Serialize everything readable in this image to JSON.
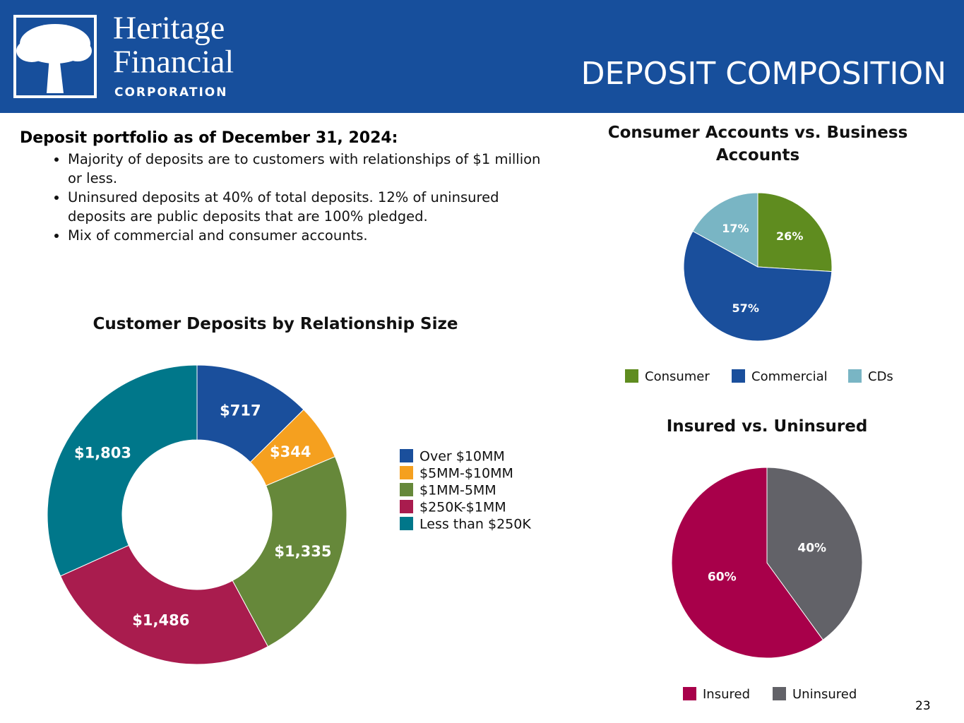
{
  "header": {
    "logo_line1": "Heritage",
    "logo_line2": "Financial",
    "logo_line3": "CORPORATION",
    "title": "DEPOSIT COMPOSITION"
  },
  "summary": {
    "heading": "Deposit portfolio as of December 31, 2024:",
    "bullets": [
      "Majority of deposits are to customers with relationships of $1 million or less.",
      "Uninsured deposits at 40% of total deposits. 12% of uninsured deposits are public deposits that are 100% pledged.",
      "Mix of commercial and consumer accounts."
    ]
  },
  "chart_data": [
    {
      "type": "donut",
      "title": "Customer Deposits by Relationship Size",
      "categories": [
        "Over $10MM",
        "$5MM-$10MM",
        "$1MM-5MM",
        "$250K-$1MM",
        "Less than $250K"
      ],
      "values": [
        717,
        344,
        1335,
        1486,
        1803
      ],
      "value_labels": [
        "$717",
        "$344",
        "$1,335",
        "$1,486",
        "$1,803"
      ],
      "colors": [
        "#1a4f9c",
        "#f5a01f",
        "#66883a",
        "#a91c4e",
        "#00778a"
      ],
      "clockwise": true
    },
    {
      "type": "pie",
      "title": "Consumer Accounts vs. Business Accounts",
      "categories": [
        "Consumer",
        "Commercial",
        "CDs"
      ],
      "values": [
        26,
        57,
        17
      ],
      "value_labels": [
        "26%",
        "57%",
        "17%"
      ],
      "colors": [
        "#5f8c1f",
        "#1a4f9c",
        "#79b5c4"
      ],
      "clockwise": true
    },
    {
      "type": "pie",
      "title": "Insured vs. Uninsured",
      "categories": [
        "Insured",
        "Uninsured"
      ],
      "values": [
        60,
        40
      ],
      "value_labels": [
        "60%",
        "40%"
      ],
      "colors": [
        "#a8004a",
        "#626268"
      ],
      "clockwise": false
    }
  ],
  "page_number": "23"
}
